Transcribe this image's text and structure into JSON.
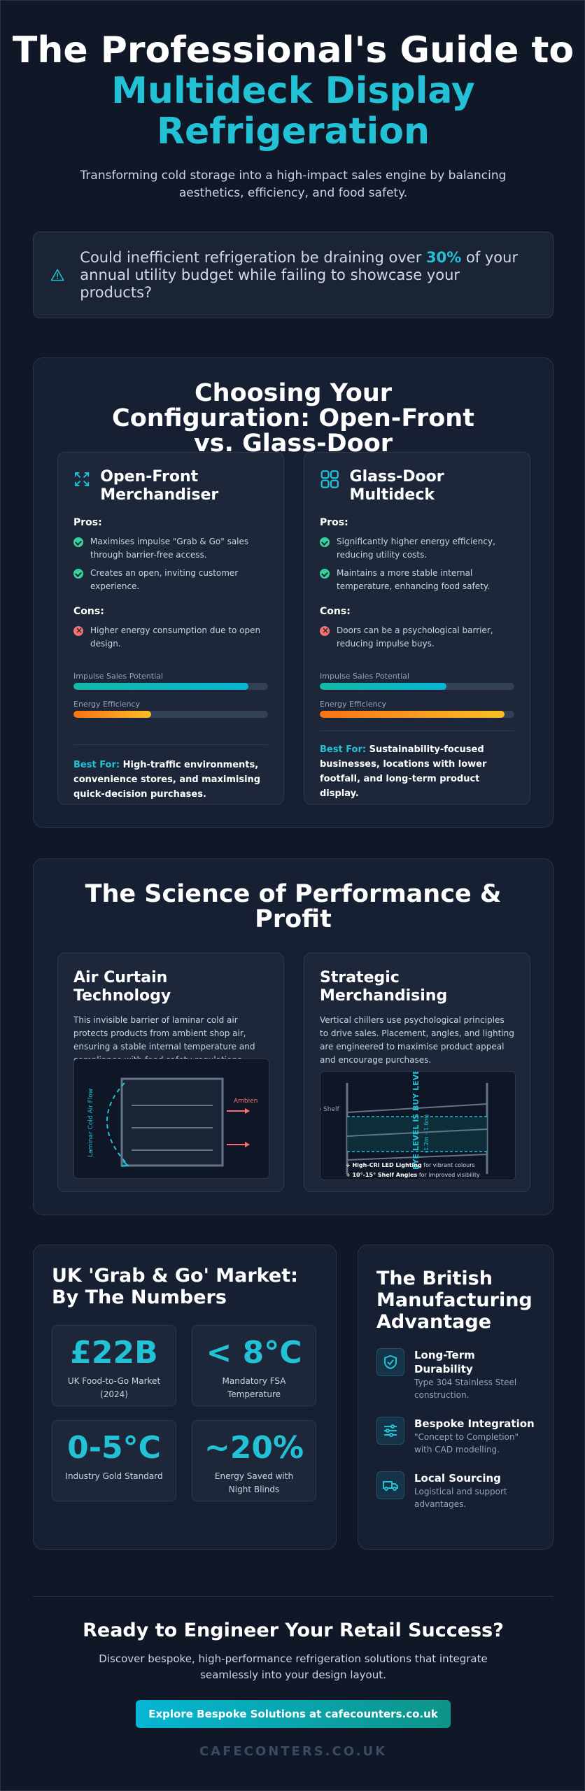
{
  "hero": {
    "title_line1": "The Professional's Guide to",
    "title_accent": "Multideck Display Refrigeration",
    "subtitle": "Transforming cold storage into a high-impact sales engine by balancing aesthetics, efficiency, and food safety."
  },
  "callout": {
    "text_before": "Could inefficient refrigeration be draining over ",
    "highlight": "30%",
    "text_after": " of your annual utility budget while failing to showcase your products?",
    "icon": "warning-triangle-icon"
  },
  "config": {
    "title": "Choosing Your Configuration: Open-Front vs. Glass-Door",
    "pros_label": "Pros:",
    "cons_label": "Cons:",
    "metric1": "Impulse Sales Potential",
    "metric2": "Energy Efficiency",
    "best_label": "Best For:",
    "open": {
      "title": "Open-Front Merchandiser",
      "icon": "expand-arrows-icon",
      "pros": [
        "Maximises impulse \"Grab & Go\" sales through barrier-free access.",
        "Creates an open, inviting customer experience."
      ],
      "cons": [
        "Higher energy consumption due to open design."
      ],
      "impulse": 0.9,
      "efficiency": 0.4,
      "best": "High-traffic environments, convenience stores, and maximising quick-decision purchases."
    },
    "glass": {
      "title": "Glass-Door Multideck",
      "icon": "grid-squares-icon",
      "pros": [
        "Significantly higher energy efficiency, reducing utility costs.",
        "Maintains a more stable internal temperature, enhancing food safety."
      ],
      "cons": [
        "Doors can be a psychological barrier, reducing impulse buys."
      ],
      "impulse": 0.65,
      "efficiency": 0.95,
      "best": "Sustainability-focused businesses, locations with lower footfall, and long-term product display."
    }
  },
  "science": {
    "title": "The Science of Performance & Profit",
    "air": {
      "title": "Air Curtain Technology",
      "desc": "This invisible barrier of laminar cold air protects products from ambient shop air, ensuring a stable internal temperature and compliance with food safety regulations.",
      "flow_label": "Laminar Cold Air Flow",
      "ambient_label": "Ambien"
    },
    "merch": {
      "title": "Strategic Merchandising",
      "desc": "Vertical chillers use psychological principles to drive sales. Placement, angles, and lighting are engineered to maximise product appeal and encourage purchases.",
      "top_shelf": "Top Shelf",
      "eye_level": "EYE LEVEL IS BUY LEVEL",
      "eye_sub": "(1.2m - 1.6m)",
      "note1_b": "+ High-CRI LED Lighting",
      "note1": " for vibrant colours",
      "note2_b": "+ 10°-15° Shelf Angles",
      "note2": " for improved visibility"
    }
  },
  "numbers": {
    "title": "UK 'Grab & Go' Market: By The Numbers",
    "stats": [
      {
        "value": "£22B",
        "caption": "UK Food-to-Go Market (2024)"
      },
      {
        "value": "< 8°C",
        "caption": "Mandatory FSA Temperature"
      },
      {
        "value": "0-5°C",
        "caption": "Industry Gold Standard"
      },
      {
        "value": "~20%",
        "caption": "Energy Saved with Night Blinds"
      }
    ]
  },
  "british": {
    "title": "The British Manufacturing Advantage",
    "items": [
      {
        "title": "Long-Term Durability",
        "desc": "Type 304 Stainless Steel construction.",
        "icon": "shield-check-icon"
      },
      {
        "title": "Bespoke Integration",
        "desc": "\"Concept to Completion\" with CAD modelling.",
        "icon": "sliders-icon"
      },
      {
        "title": "Local Sourcing",
        "desc": "Logistical and support advantages.",
        "icon": "truck-icon"
      }
    ]
  },
  "cta": {
    "title": "Ready to Engineer Your Retail Success?",
    "text": "Discover bespoke, high-performance refrigeration solutions that integrate seamlessly into your design layout.",
    "button": "Explore Bespoke Solutions at cafecounters.co.uk"
  },
  "footer": "CAFECONTERS.CO.UK",
  "colors": {
    "accent": "#22c1d6",
    "background": "#101828",
    "orange": "#f97316"
  }
}
